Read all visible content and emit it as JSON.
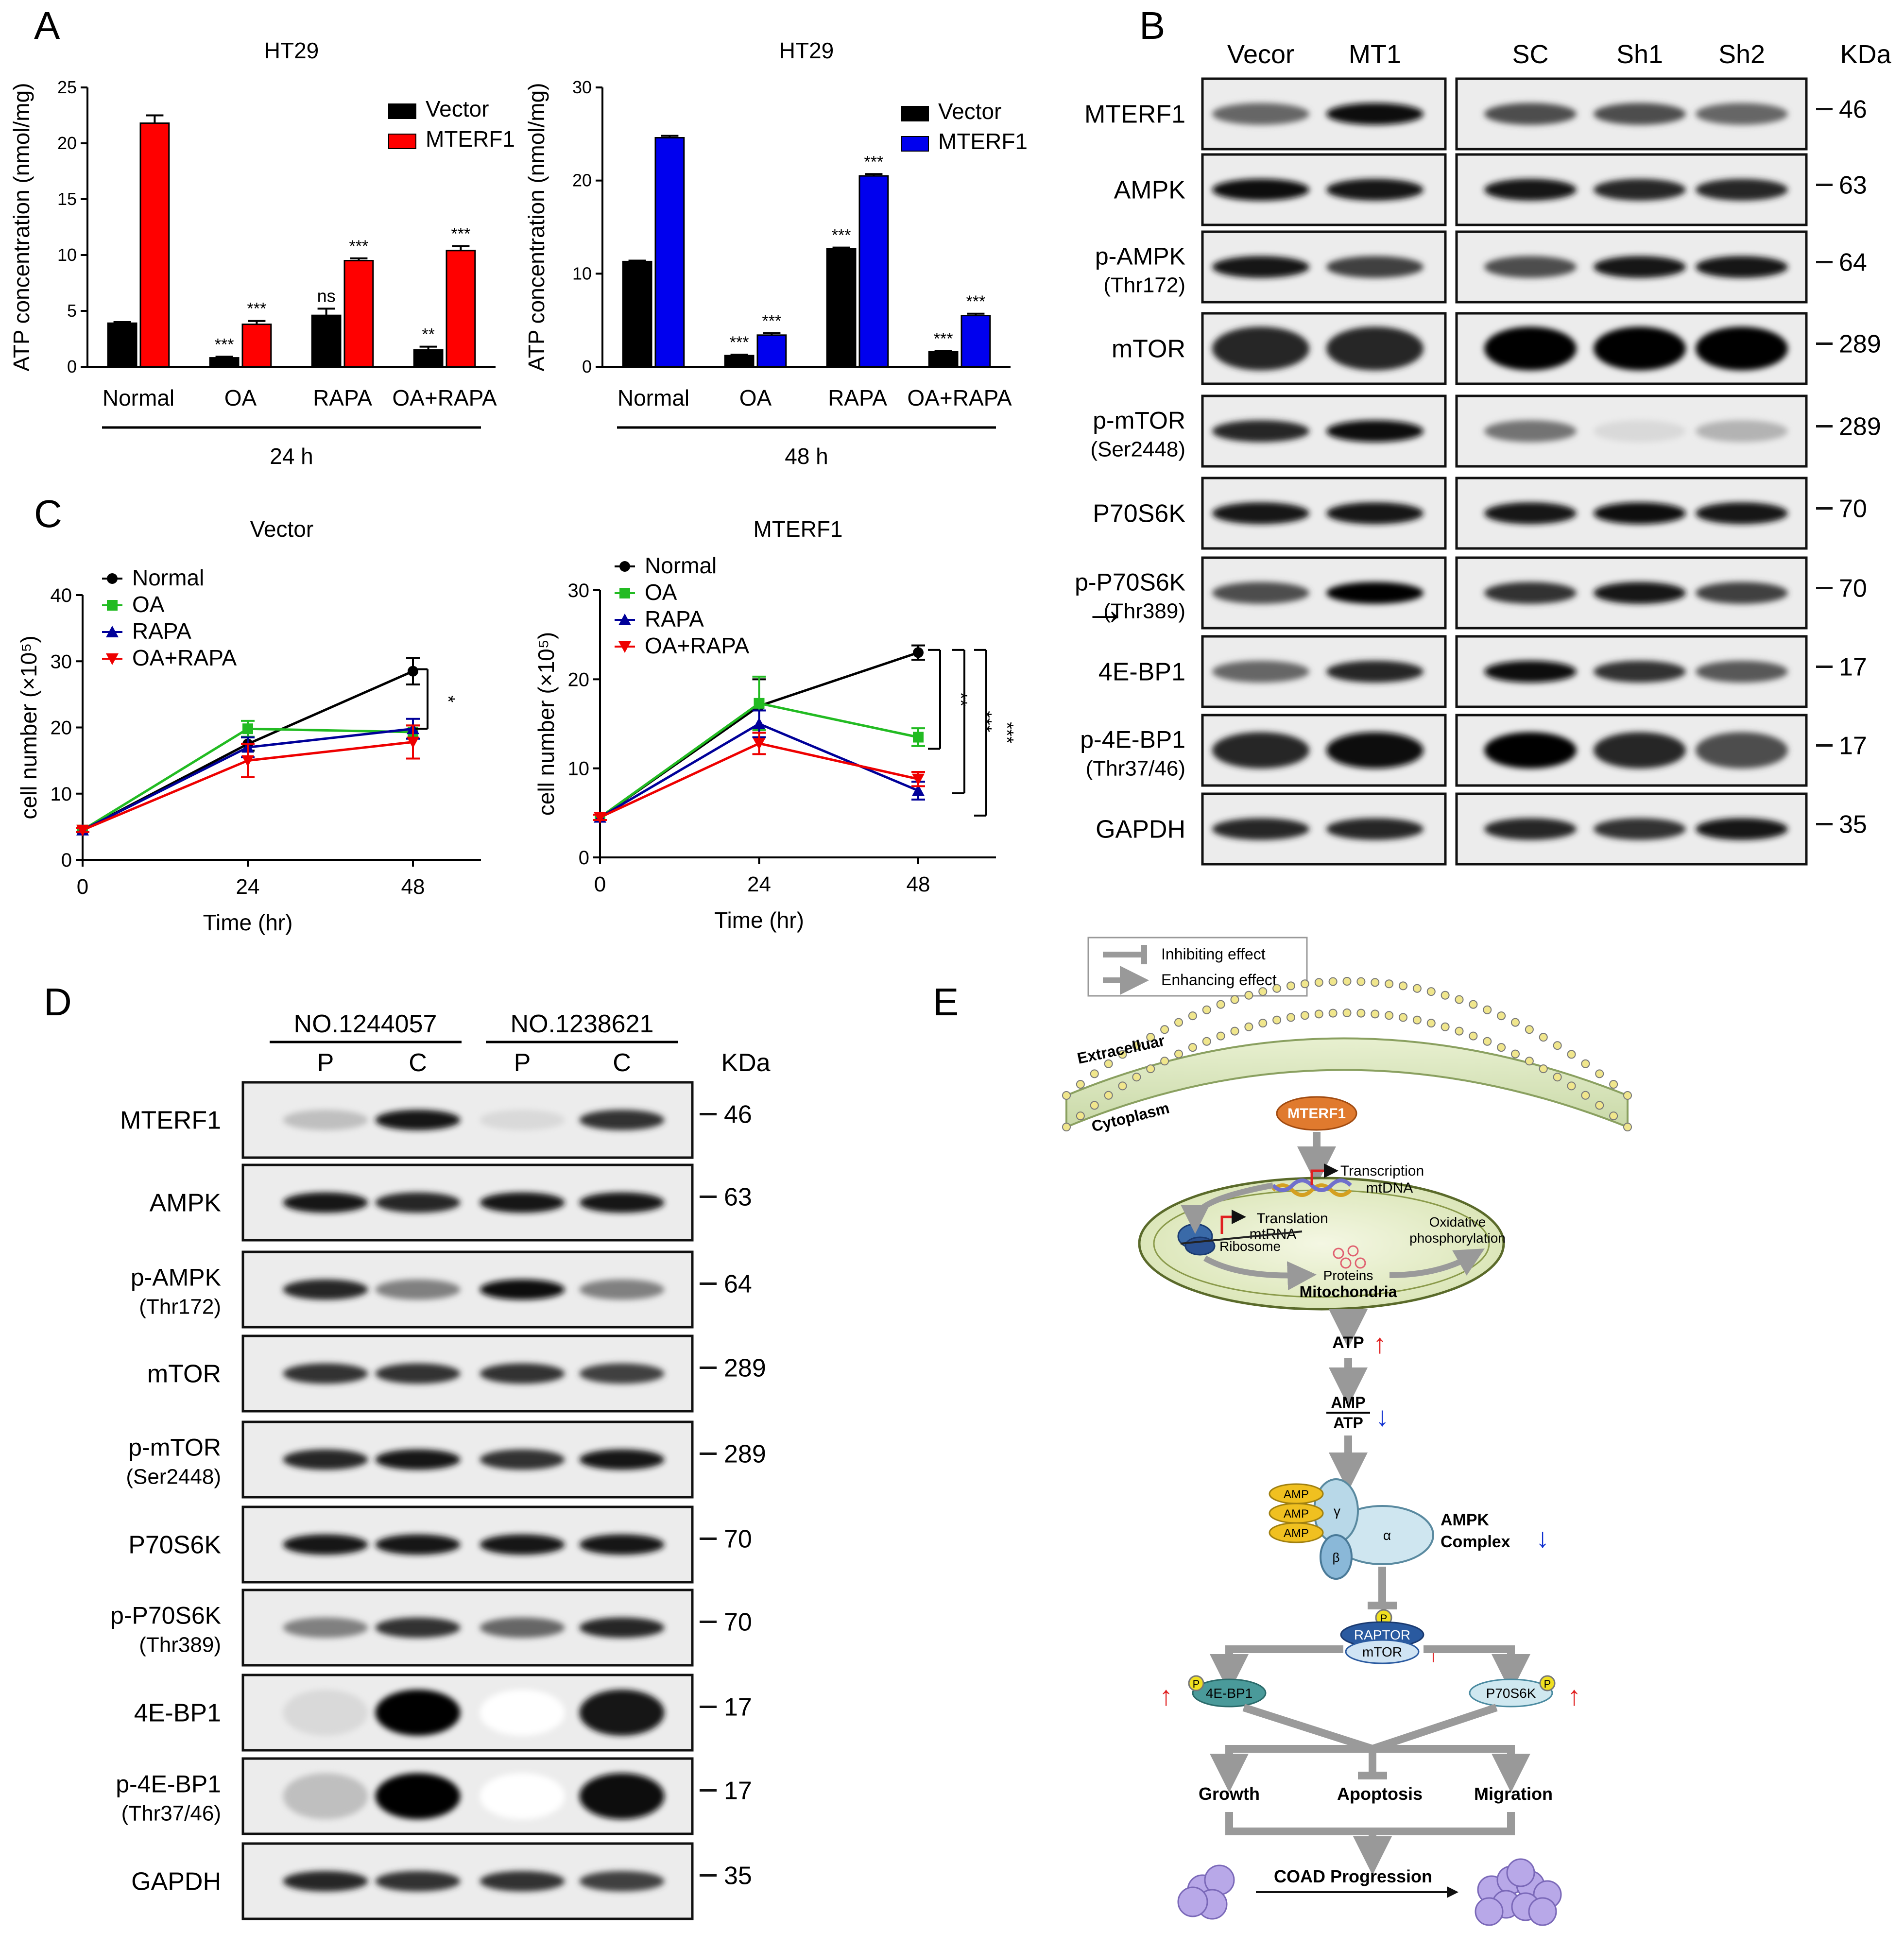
{
  "panels": {
    "A": "A",
    "B": "B",
    "C": "C",
    "D": "D",
    "E": "E"
  },
  "chart_data": [
    {
      "id": "A1",
      "type": "bar",
      "title": "HT29",
      "ylabel": "ATP concentration (nmol/mg)",
      "ylim": [
        0,
        25
      ],
      "yticks": [
        "0",
        "5",
        "10",
        "15",
        "20",
        "25"
      ],
      "categories": [
        "Normal",
        "OA",
        "RAPA",
        "OA+RAPA"
      ],
      "group_label": "24 h",
      "legend_position": "top-right",
      "series": [
        {
          "name": "Vector",
          "color": "#000000",
          "values": [
            3.9,
            0.8,
            4.6,
            1.5
          ],
          "errors": [
            0.1,
            0.1,
            0.6,
            0.3
          ]
        },
        {
          "name": "MTERF1",
          "color": "#ff0000",
          "values": [
            21.8,
            3.8,
            9.5,
            10.4
          ],
          "errors": [
            0.7,
            0.3,
            0.2,
            0.4
          ]
        }
      ],
      "sig": [
        [
          "",
          "***",
          "ns",
          "**"
        ],
        [
          "",
          "***",
          "***",
          "***"
        ]
      ]
    },
    {
      "id": "A2",
      "type": "bar",
      "title": "HT29",
      "ylabel": "ATP concentration (nmol/mg)",
      "ylim": [
        0,
        30
      ],
      "yticks": [
        "0",
        "10",
        "20",
        "30"
      ],
      "categories": [
        "Normal",
        "OA",
        "RAPA",
        "OA+RAPA"
      ],
      "group_label": "48 h",
      "legend_position": "top-right",
      "series": [
        {
          "name": "Vector",
          "color": "#000000",
          "values": [
            11.3,
            1.2,
            12.7,
            1.6
          ],
          "errors": [
            0.1,
            0.1,
            0.1,
            0.1
          ]
        },
        {
          "name": "MTERF1",
          "color": "#0000ee",
          "values": [
            24.6,
            3.4,
            20.5,
            5.5
          ],
          "errors": [
            0.2,
            0.2,
            0.2,
            0.2
          ]
        }
      ],
      "sig": [
        [
          "",
          "***",
          "***",
          "***"
        ],
        [
          "",
          "***",
          "***",
          "***"
        ]
      ]
    },
    {
      "id": "C1",
      "type": "line",
      "title": "Vector",
      "xlabel": "Time (hr)",
      "ylabel": "cell number (×10⁵)",
      "xlim": [
        0,
        48
      ],
      "ylim": [
        0,
        40
      ],
      "x": [
        0,
        24,
        48
      ],
      "xticks": [
        "0",
        "24",
        "48"
      ],
      "yticks": [
        "0",
        "10",
        "20",
        "30",
        "40"
      ],
      "legend_position": "top-left",
      "series": [
        {
          "name": "Normal",
          "color": "#000000",
          "marker": "circle",
          "values": [
            4.5,
            17.5,
            28.5
          ],
          "errors": [
            0.3,
            1.0,
            2.0
          ]
        },
        {
          "name": "OA",
          "color": "#22bb22",
          "marker": "square",
          "values": [
            4.5,
            19.8,
            19.3
          ],
          "errors": [
            0.3,
            1.2,
            1.0
          ]
        },
        {
          "name": "RAPA",
          "color": "#000099",
          "marker": "triangle",
          "values": [
            4.5,
            17.0,
            19.8
          ],
          "errors": [
            0.3,
            1.5,
            1.5
          ]
        },
        {
          "name": "OA+RAPA",
          "color": "#ee0000",
          "marker": "triangle-down",
          "values": [
            4.5,
            15.0,
            17.8
          ],
          "errors": [
            0.3,
            2.5,
            2.5
          ]
        }
      ],
      "sig_labels": [
        "*"
      ]
    },
    {
      "id": "C2",
      "type": "line",
      "title": "MTERF1",
      "xlabel": "Time (hr)",
      "ylabel": "cell number (×10⁵)",
      "xlim": [
        0,
        48
      ],
      "ylim": [
        0,
        30
      ],
      "x": [
        0,
        24,
        48
      ],
      "xticks": [
        "0",
        "24",
        "48"
      ],
      "yticks": [
        "0",
        "10",
        "20",
        "30"
      ],
      "legend_position": "top-left",
      "series": [
        {
          "name": "Normal",
          "color": "#000000",
          "marker": "circle",
          "values": [
            4.5,
            17.0,
            23.0
          ],
          "errors": [
            0.3,
            3.0,
            0.8
          ]
        },
        {
          "name": "OA",
          "color": "#22bb22",
          "marker": "square",
          "values": [
            4.5,
            17.3,
            13.5
          ],
          "errors": [
            0.3,
            3.0,
            1.0
          ]
        },
        {
          "name": "RAPA",
          "color": "#000099",
          "marker": "triangle",
          "values": [
            4.5,
            15.0,
            7.5
          ],
          "errors": [
            0.3,
            1.5,
            1.0
          ]
        },
        {
          "name": "OA+RAPA",
          "color": "#ee0000",
          "marker": "triangle-down",
          "values": [
            4.5,
            12.8,
            8.8
          ],
          "errors": [
            0.3,
            1.2,
            0.8
          ]
        }
      ],
      "sig_labels": [
        "**",
        "***",
        "***"
      ]
    }
  ],
  "blotB": {
    "left_labels": [
      "Vecor",
      "MT1"
    ],
    "right_labels": [
      "SC",
      "Sh1",
      "Sh2"
    ],
    "kda_header": "KDa",
    "arrow": "→",
    "rows": [
      {
        "name": "MTERF1",
        "sub": "",
        "kda": "46"
      },
      {
        "name": "AMPK",
        "sub": "",
        "kda": "63"
      },
      {
        "name": "p-AMPK",
        "sub": "(Thr172)",
        "kda": "64"
      },
      {
        "name": "mTOR",
        "sub": "",
        "kda": "289"
      },
      {
        "name": "p-mTOR",
        "sub": "(Ser2448)",
        "kda": "289"
      },
      {
        "name": "P70S6K",
        "sub": "",
        "kda": "70"
      },
      {
        "name": "p-P70S6K",
        "sub": "(Thr389)",
        "kda": "70"
      },
      {
        "name": "4E-BP1",
        "sub": "",
        "kda": "17"
      },
      {
        "name": "p-4E-BP1",
        "sub": "(Thr37/46)",
        "kda": "17"
      },
      {
        "name": "GAPDH",
        "sub": "",
        "kda": "35"
      }
    ]
  },
  "blotD": {
    "groups": [
      "NO.1244057",
      "NO.1238621"
    ],
    "lanes": [
      "P",
      "C",
      "P",
      "C"
    ],
    "kda_header": "KDa",
    "rows": [
      {
        "name": "MTERF1",
        "sub": "",
        "kda": "46"
      },
      {
        "name": "AMPK",
        "sub": "",
        "kda": "63"
      },
      {
        "name": "p-AMPK",
        "sub": "(Thr172)",
        "kda": "64"
      },
      {
        "name": "mTOR",
        "sub": "",
        "kda": "289"
      },
      {
        "name": "p-mTOR",
        "sub": "(Ser2448)",
        "kda": "289"
      },
      {
        "name": "P70S6K",
        "sub": "",
        "kda": "70"
      },
      {
        "name": "p-P70S6K",
        "sub": "(Thr389)",
        "kda": "70"
      },
      {
        "name": "4E-BP1",
        "sub": "",
        "kda": "17"
      },
      {
        "name": "p-4E-BP1",
        "sub": "(Thr37/46)",
        "kda": "17"
      },
      {
        "name": "GAPDH",
        "sub": "",
        "kda": "35"
      }
    ]
  },
  "diagramE": {
    "legend": {
      "inhibit": "Inhibiting effect",
      "enhance": "Enhancing effect"
    },
    "extracellular": "Extracelluar",
    "cytoplasm": "Cytoplasm",
    "mterf1": "MTERF1",
    "transcription": "Transcription",
    "mtdna": "mtDNA",
    "translation": "Translation",
    "mtrna": "mtRNA",
    "ribosome": "Ribosome",
    "oxphos1": "Oxidative",
    "oxphos2": "phosphorylation",
    "proteins": "Proteins",
    "mitochondria": "Mitochondria",
    "atp": "ATP",
    "amp_num": "AMP",
    "amp_den": "ATP",
    "amp": "AMP",
    "gamma": "γ",
    "alpha": "α",
    "beta": "β",
    "ampk1": "AMPK",
    "ampk2": "Complex",
    "p": "P",
    "raptor": "RAPTOR",
    "mtor": "mTOR",
    "ebp": "4E-BP1",
    "p70": "P70S6K",
    "growth": "Growth",
    "apoptosis": "Apoptosis",
    "migration": "Migration",
    "coad": "COAD Progression",
    "up": "↑",
    "down": "↓"
  }
}
